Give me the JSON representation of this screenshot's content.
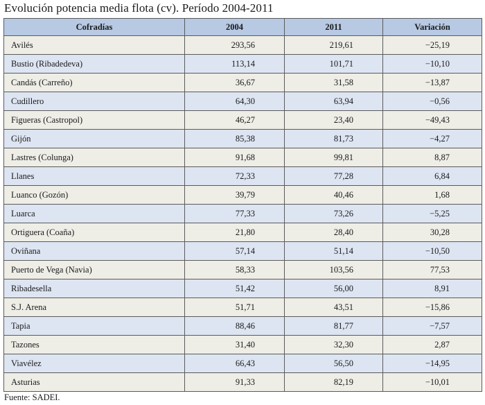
{
  "title": "Evolución potencia media flota (cv). Período 2004-2011",
  "table": {
    "headers": [
      "Cofradías",
      "2004",
      "2011",
      "Variación"
    ],
    "rows": [
      [
        "Avilés",
        "293,56",
        "219,61",
        "−25,19"
      ],
      [
        "Bustio (Ribadedeva)",
        "113,14",
        "101,71",
        "−10,10"
      ],
      [
        "Candás (Carreño)",
        "36,67",
        "31,58",
        "−13,87"
      ],
      [
        "Cudillero",
        "64,30",
        "63,94",
        "−0,56"
      ],
      [
        "Figueras (Castropol)",
        "46,27",
        "23,40",
        "−49,43"
      ],
      [
        "Gijón",
        "85,38",
        "81,73",
        "−4,27"
      ],
      [
        "Lastres (Colunga)",
        "91,68",
        "99,81",
        "8,87"
      ],
      [
        "Llanes",
        "72,33",
        "77,28",
        "6,84"
      ],
      [
        "Luanco (Gozón)",
        "39,79",
        "40,46",
        "1,68"
      ],
      [
        "Luarca",
        "77,33",
        "73,26",
        "−5,25"
      ],
      [
        "Ortiguera (Coaña)",
        "21,80",
        "28,40",
        "30,28"
      ],
      [
        "Oviñana",
        "57,14",
        "51,14",
        "−10,50"
      ],
      [
        "Puerto de Vega (Navia)",
        "58,33",
        "103,56",
        "77,53"
      ],
      [
        "Ribadesella",
        "51,42",
        "56,00",
        "8,91"
      ],
      [
        "S.J. Arena",
        "51,71",
        "43,51",
        "−15,86"
      ],
      [
        "Tapia",
        "88,46",
        "81,77",
        "−7,57"
      ],
      [
        "Tazones",
        "31,40",
        "32,30",
        "2,87"
      ],
      [
        "Viavélez",
        "66,43",
        "56,50",
        "−14,95"
      ],
      [
        "Asturias",
        "91,33",
        "82,19",
        "−10,01"
      ]
    ]
  },
  "source": "Fuente: SADEI.",
  "colors": {
    "header_bg": "#b7c9e3",
    "row_a": "#eeede6",
    "row_b": "#dde5f2",
    "border": "#5a5a5a"
  }
}
